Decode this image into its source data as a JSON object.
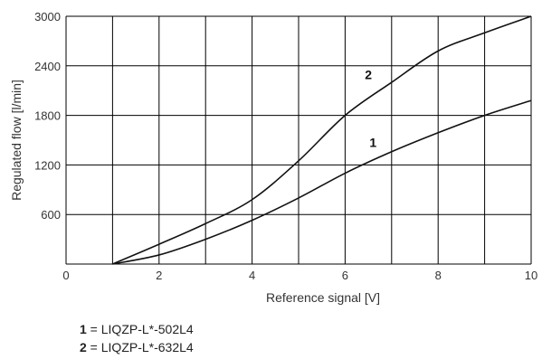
{
  "chart_data": {
    "type": "line",
    "xlabel": "Reference signal [V]",
    "ylabel": "Regulated flow [l/min]",
    "xlim": [
      0,
      10
    ],
    "ylim": [
      0,
      3000
    ],
    "x_ticks": [
      0,
      2,
      4,
      6,
      8,
      10
    ],
    "y_ticks": [
      600,
      1200,
      1800,
      2400,
      3000
    ],
    "grid": true,
    "series": [
      {
        "name": "1",
        "x": [
          1,
          2,
          3,
          4,
          5,
          6,
          7,
          8,
          9,
          10
        ],
        "y": [
          0,
          110,
          300,
          530,
          800,
          1100,
          1360,
          1590,
          1800,
          1980
        ]
      },
      {
        "name": "2",
        "x": [
          1,
          2,
          3,
          4,
          5,
          6,
          7,
          8,
          9,
          10
        ],
        "y": [
          0,
          240,
          490,
          780,
          1250,
          1800,
          2200,
          2580,
          2800,
          3000
        ]
      }
    ],
    "curve_labels": [
      {
        "text": "1",
        "x": 6.6,
        "y": 1420
      },
      {
        "text": "2",
        "x": 6.5,
        "y": 2240
      }
    ],
    "legend": [
      {
        "key": "1",
        "text": " = LIQZP-L*-502L4"
      },
      {
        "key": "2",
        "text": " = LIQZP-L*-632L4"
      }
    ]
  }
}
